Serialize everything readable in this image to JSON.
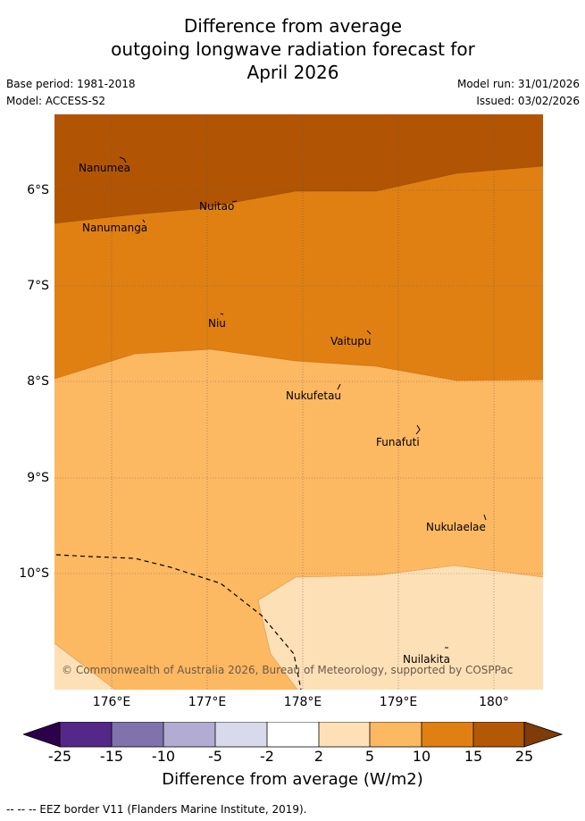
{
  "title": {
    "line1": "Difference from average",
    "line2": "outgoing longwave radiation forecast for",
    "line3": "April 2026"
  },
  "meta": {
    "base_period": "Base period: 1981-2018",
    "model": "Model: ACCESS-S2",
    "model_run": "Model run: 31/01/2026",
    "issued": "Issued: 03/02/2026"
  },
  "map": {
    "latitude_labels": [
      "6°S",
      "7°S",
      "8°S",
      "9°S",
      "10°S"
    ],
    "longitude_labels": [
      "176°E",
      "177°E",
      "178°E",
      "179°E",
      "180°"
    ],
    "places": [
      "Nanumea",
      "Nuitao",
      "Nanumanga",
      "Niu",
      "Vaitupu",
      "Nukufetau",
      "Funafuti",
      "Nukulaelae",
      "Nuilakita"
    ],
    "copyright": "© Commonwealth of Australia 2026, Bureau of Meteorology, supported by COSPPac",
    "colors": {
      "gt15": "#b15504",
      "10_15": "#e08013",
      "5_10": "#fdb862",
      "2_5": "#fee0b6",
      "grid": "#555555"
    }
  },
  "colorbar": {
    "ticks": [
      "-25",
      "-15",
      "-10",
      "-5",
      "-2",
      "2",
      "5",
      "10",
      "15",
      "25"
    ],
    "colors": [
      "#2d004b",
      "#542788",
      "#8073ac",
      "#b2abd2",
      "#d8daeb",
      "#ffffff",
      "#fee0b6",
      "#fdb862",
      "#e08013",
      "#b35806",
      "#7f3b08"
    ],
    "title": "Difference from average (W/m2)"
  },
  "footer": "-- -- -- EEZ border V11 (Flanders Marine Institute, 2019)."
}
